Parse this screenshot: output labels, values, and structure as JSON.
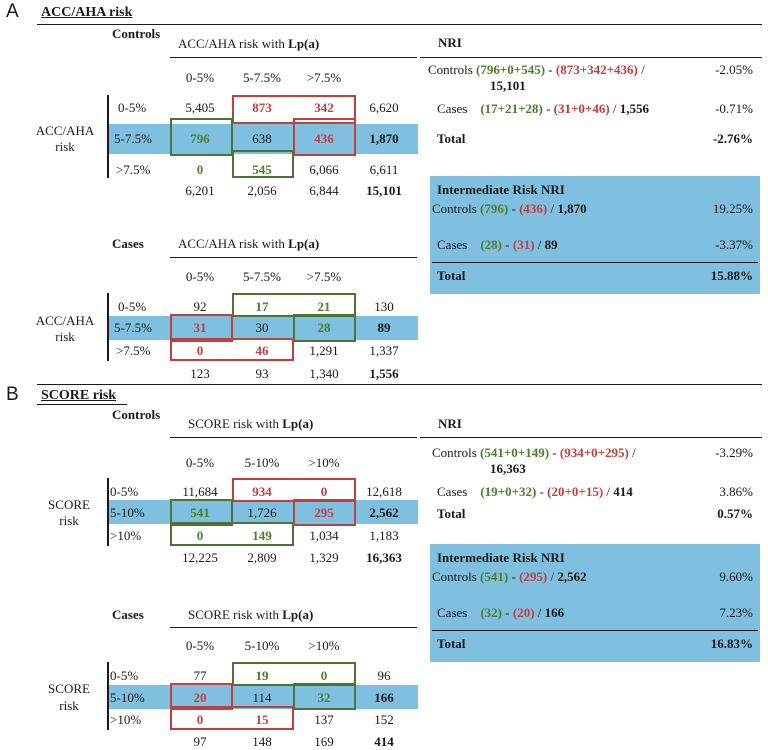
{
  "panels": [
    {
      "letter": "A",
      "title": "ACC/AHA risk",
      "controls": {
        "group_label": "Controls",
        "header_prefix": "ACC/AHA risk with ",
        "header_bold": "Lp(a)",
        "cols": [
          "0-5%",
          "5-7.5%",
          ">7.5%"
        ],
        "side_label_1": "ACC/AHA",
        "side_label_2": "risk",
        "rows": [
          {
            "label": "0-5%",
            "cells": [
              "5,405",
              "873",
              "342"
            ],
            "total": "6,620"
          },
          {
            "label": "5-7.5%",
            "cells": [
              "796",
              "638",
              "436"
            ],
            "total": "1,870"
          },
          {
            "label": ">7.5%",
            "cells": [
              "0",
              "545",
              "6,066"
            ],
            "total": "6,611"
          }
        ],
        "col_totals": [
          "6,201",
          "2,056",
          "6,844"
        ],
        "grand_total": "15,101"
      },
      "cases": {
        "group_label": "Cases",
        "header_prefix": "ACC/AHA risk with ",
        "header_bold": "Lp(a)",
        "cols": [
          "0-5%",
          "5-7.5%",
          ">7.5%"
        ],
        "side_label_1": "ACC/AHA",
        "side_label_2": "risk",
        "rows": [
          {
            "label": "0-5%",
            "cells": [
              "92",
              "17",
              "21"
            ],
            "total": "130"
          },
          {
            "label": "5-7.5%",
            "cells": [
              "31",
              "30",
              "28"
            ],
            "total": "89"
          },
          {
            "label": ">7.5%",
            "cells": [
              "0",
              "46",
              "1,291"
            ],
            "total": "1,337"
          }
        ],
        "col_totals": [
          "123",
          "93",
          "1,340"
        ],
        "grand_total": "1,556"
      },
      "nri": {
        "title": "NRI",
        "controls_label": "Controls",
        "controls_up": "(796+0+545)",
        "controls_down": "(873+342+436)",
        "controls_denom": "15,101",
        "controls_pct": "-2.05%",
        "cases_label": "Cases",
        "cases_up": "(17+21+28)",
        "cases_down": "(31+0+46)",
        "cases_denom": "1,556",
        "cases_pct": "-0.71%",
        "total_label": "Total",
        "total_pct": "-2.76%"
      },
      "inri": {
        "title": "Intermediate Risk NRI",
        "controls_label": "Controls",
        "controls_up": "(796)",
        "controls_down": "(436)",
        "controls_denom": "1,870",
        "controls_pct": "19.25%",
        "cases_label": "Cases",
        "cases_up": "(28)",
        "cases_down": "(31)",
        "cases_denom": "89",
        "cases_pct": "-3.37%",
        "total_label": "Total",
        "total_pct": "15.88%"
      }
    },
    {
      "letter": "B",
      "title": "SCORE risk",
      "controls": {
        "group_label": "Controls",
        "header_prefix": "SCORE risk with ",
        "header_bold": "Lp(a)",
        "cols": [
          "0-5%",
          "5-10%",
          ">10%"
        ],
        "side_label_1": "SCORE",
        "side_label_2": "risk",
        "rows": [
          {
            "label": "0-5%",
            "cells": [
              "11,684",
              "934",
              "0"
            ],
            "total": "12,618"
          },
          {
            "label": "5-10%",
            "cells": [
              "541",
              "1,726",
              "295"
            ],
            "total": "2,562"
          },
          {
            "label": ">10%",
            "cells": [
              "0",
              "149",
              "1,034"
            ],
            "total": "1,183"
          }
        ],
        "col_totals": [
          "12,225",
          "2,809",
          "1,329"
        ],
        "grand_total": "16,363"
      },
      "cases": {
        "group_label": "Cases",
        "header_prefix": "SCORE risk with ",
        "header_bold": "Lp(a)",
        "cols": [
          "0-5%",
          "5-10%",
          ">10%"
        ],
        "side_label_1": "SCORE",
        "side_label_2": "risk",
        "rows": [
          {
            "label": "0-5%",
            "cells": [
              "77",
              "19",
              "0"
            ],
            "total": "96"
          },
          {
            "label": "5-10%",
            "cells": [
              "20",
              "114",
              "32"
            ],
            "total": "166"
          },
          {
            "label": ">10%",
            "cells": [
              "0",
              "15",
              "137"
            ],
            "total": "152"
          }
        ],
        "col_totals": [
          "97",
          "148",
          "169"
        ],
        "grand_total": "414"
      },
      "nri": {
        "title": "NRI",
        "controls_label": "Controls",
        "controls_up": "(541+0+149)",
        "controls_down": "(934+0+295)",
        "controls_denom": "16,363",
        "controls_pct": "-3.29%",
        "cases_label": "Cases",
        "cases_up": "(19+0+32)",
        "cases_down": "(20+0+15)",
        "cases_denom": "414",
        "cases_pct": "3.86%",
        "total_label": "Total",
        "total_pct": "0.57%"
      },
      "inri": {
        "title": "Intermediate Risk NRI",
        "controls_label": "Controls",
        "controls_up": "(541)",
        "controls_down": "(295)",
        "controls_denom": "2,562",
        "controls_pct": "9.60%",
        "cases_label": "Cases",
        "cases_up": "(32)",
        "cases_down": "(20)",
        "cases_denom": "166",
        "cases_pct": "7.23%",
        "total_label": "Total",
        "total_pct": "16.83%"
      }
    }
  ],
  "colors": {
    "stripe": "#7fbfe0",
    "red": "#c0403f",
    "green": "#4f7d2e"
  }
}
